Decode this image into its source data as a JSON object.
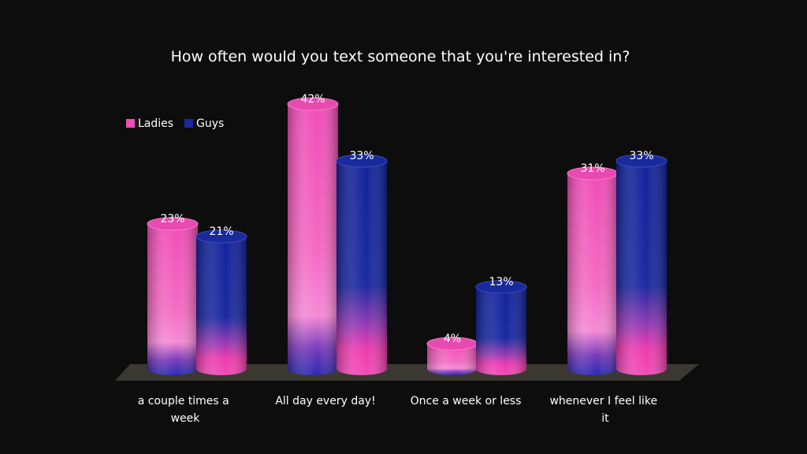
{
  "chart_data": {
    "type": "bar",
    "title": "How often would you text someone that you're interested in?",
    "categories": [
      "a couple times a week",
      "All day every day!",
      "Once a week or less",
      "whenever I feel like it"
    ],
    "series": [
      {
        "name": "Ladies",
        "values": [
          23,
          42,
          4,
          31
        ],
        "labels": [
          "23%",
          "42%",
          "4%",
          "31%"
        ]
      },
      {
        "name": "Guys",
        "values": [
          21,
          33,
          13,
          33
        ],
        "labels": [
          "21%",
          "33%",
          "13%",
          "33%"
        ]
      }
    ],
    "ylim": [
      0,
      42
    ],
    "grid": false,
    "legend_position": "top-left",
    "colors": {
      "background": "#0d0d0d",
      "ladies_top": "#f050b8",
      "ladies_mid": "#f27ac8",
      "guys_top": "#0f2090",
      "guys_bottom": "#e0209f",
      "floor": "#3b3832",
      "text": "#ffffff"
    }
  }
}
